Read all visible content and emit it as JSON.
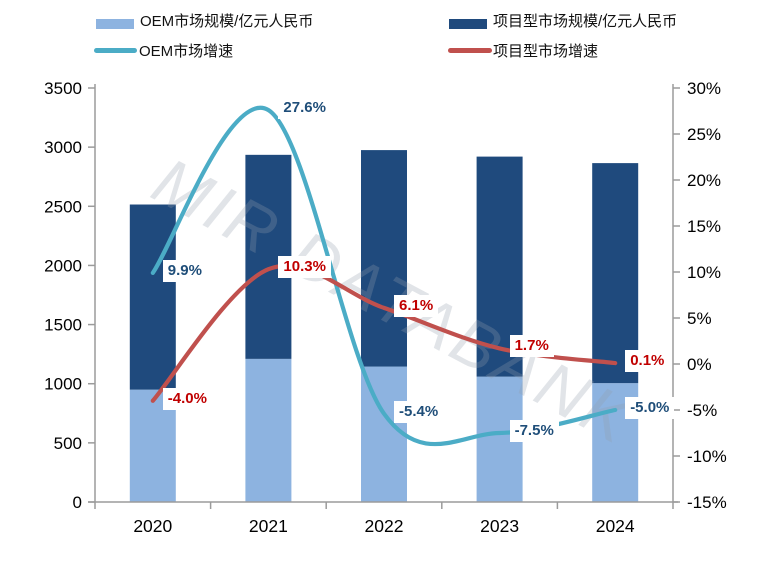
{
  "legend": {
    "items": [
      {
        "label": "OEM市场规模/亿元人民币",
        "type": "bar",
        "color": "#8DB3E0"
      },
      {
        "label": "项目型市场规模/亿元人民币",
        "type": "bar",
        "color": "#1F4A7D"
      },
      {
        "label": "OEM市场增速",
        "type": "line",
        "color": "#4BACC6"
      },
      {
        "label": "项目型市场增速",
        "type": "line",
        "color": "#C0504D"
      }
    ]
  },
  "watermark": "MIR DATABANK",
  "chart_data": {
    "type": "bar",
    "subtype": "stacked-bars-with-smoothed-lines",
    "categories": [
      "2020",
      "2021",
      "2022",
      "2023",
      "2024"
    ],
    "bar_series": [
      {
        "name": "OEM市场规模/亿元人民币",
        "axis": "left",
        "color": "#8DB3E0",
        "values": [
          950,
          1210,
          1145,
          1060,
          1005
        ]
      },
      {
        "name": "项目型市场规模/亿元人民币",
        "axis": "left",
        "color": "#1F4A7D",
        "values": [
          1565,
          1725,
          1830,
          1860,
          1860
        ]
      }
    ],
    "line_series": [
      {
        "name": "OEM市场增速",
        "axis": "right",
        "color": "#4BACC6",
        "label_color": "#1F4E79",
        "values_pct": [
          9.9,
          27.6,
          -5.4,
          -7.5,
          -5.0
        ],
        "labels": [
          "9.9%",
          "27.6%",
          "-5.4%",
          "-7.5%",
          "-5.0%"
        ]
      },
      {
        "name": "项目型市场增速",
        "axis": "right",
        "color": "#C0504D",
        "label_color": "#C00000",
        "values_pct": [
          -4.0,
          10.3,
          6.1,
          1.7,
          0.1
        ],
        "labels": [
          "-4.0%",
          "10.3%",
          "6.1%",
          "1.7%",
          "0.1%"
        ]
      }
    ],
    "left_axis": {
      "min": 0,
      "max": 3500,
      "step": 500,
      "ticks": [
        "0",
        "500",
        "1000",
        "1500",
        "2000",
        "2500",
        "3000",
        "3500"
      ]
    },
    "right_axis": {
      "min": -15,
      "max": 30,
      "step": 5,
      "ticks": [
        "-15%",
        "-10%",
        "-5%",
        "0%",
        "5%",
        "10%",
        "15%",
        "20%",
        "25%",
        "30%"
      ]
    },
    "stacked": true,
    "grid": false,
    "legend_position": "top",
    "axis_color": "#9B9B9B",
    "text_color": "#000000"
  }
}
